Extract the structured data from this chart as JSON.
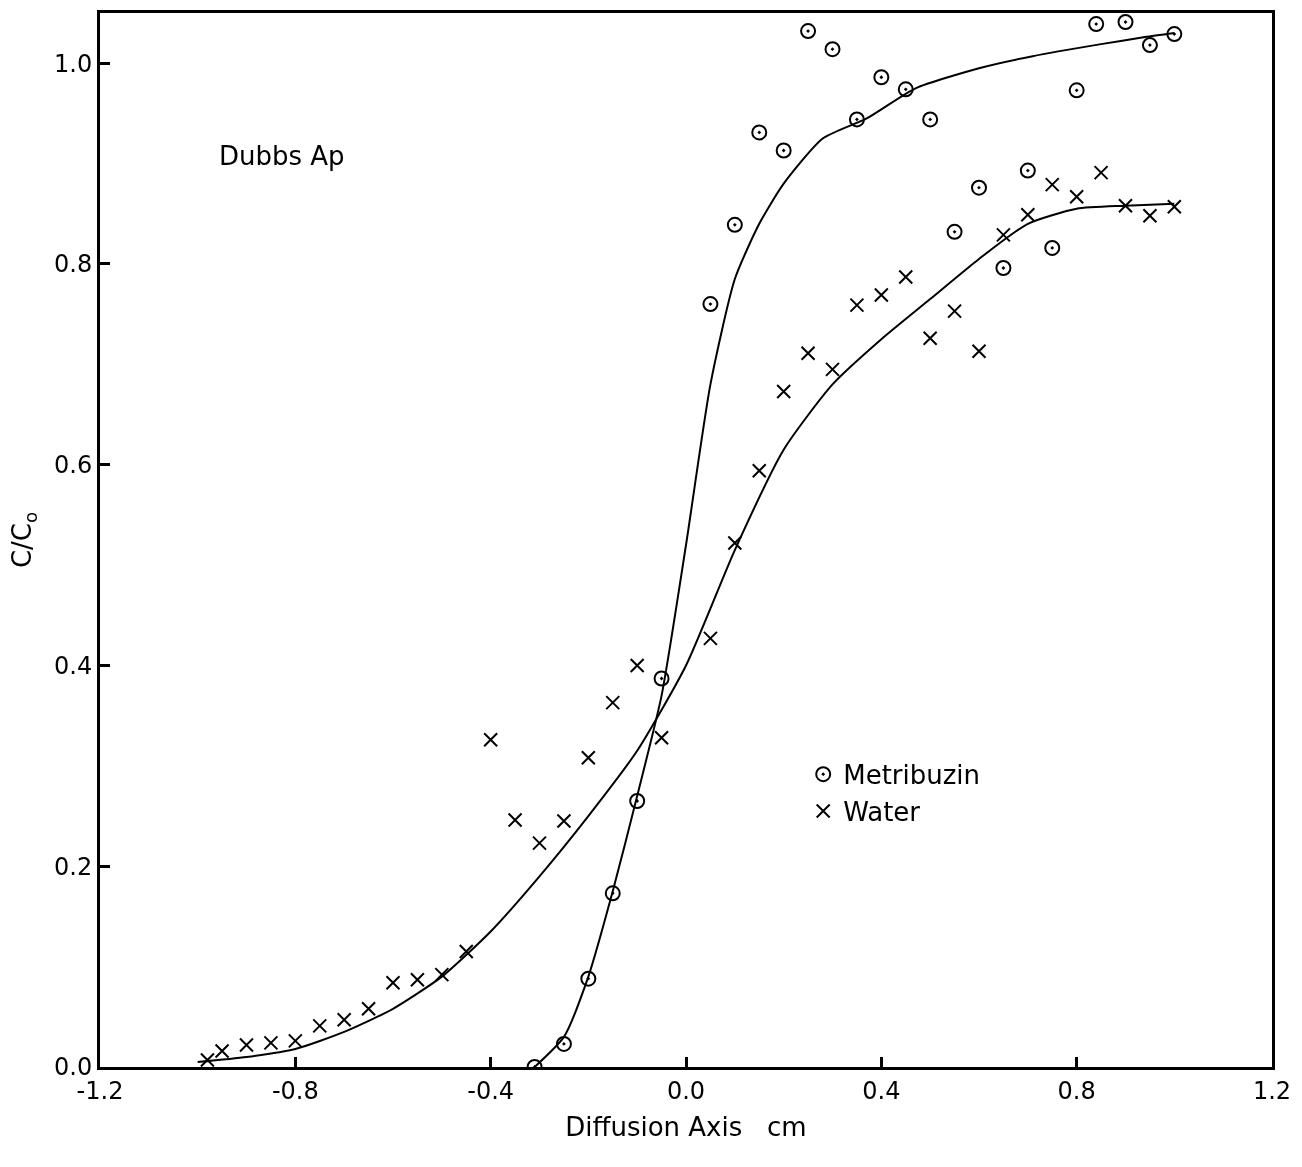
{
  "chart_data": {
    "type": "scatter",
    "xlabel": "Diffusion Axis   cm",
    "ylabel": "C/C$_{o}$",
    "annotations": [
      "Dubbs Ap"
    ],
    "xlim": [
      -1.2,
      1.2
    ],
    "ylim": [
      0,
      1.05
    ],
    "xticks": [
      -1.2,
      -0.8,
      -0.4,
      {
        "value": 0,
        "label": "0.0"
      },
      0.4,
      0.8,
      1.2
    ],
    "yticks": [
      {
        "value": 0,
        "label": "0.0"
      },
      0.2,
      0.4,
      0.6,
      0.8,
      {
        "value": 1,
        "label": "1.0"
      }
    ],
    "legend": "bottom right",
    "series": [
      {
        "name": "Metribuzin",
        "marker": "circle",
        "color": "#000000",
        "x": [
          -0.31,
          -0.25,
          -0.2,
          -0.15,
          -0.1,
          -0.05,
          0.05,
          0.1,
          0.15,
          0.2,
          0.25,
          0.3,
          0.35,
          0.4,
          0.45,
          0.5,
          0.55,
          0.6,
          0.65,
          0.7,
          0.75,
          0.8,
          0.84,
          0.9,
          0.95,
          1.0
        ],
        "values": [
          0.0,
          0.023,
          0.088,
          0.173,
          0.265,
          0.387,
          0.76,
          0.839,
          0.931,
          0.913,
          1.032,
          1.014,
          0.944,
          0.986,
          0.974,
          0.944,
          0.832,
          0.876,
          0.796,
          0.893,
          0.816,
          0.973,
          1.039,
          1.041,
          1.018,
          1.029
        ]
      },
      {
        "name": "Water",
        "marker": "cross",
        "color": "#000000",
        "x": [
          -0.98,
          -0.95,
          -0.9,
          -0.85,
          -0.8,
          -0.75,
          -0.7,
          -0.65,
          -0.6,
          -0.55,
          -0.5,
          -0.45,
          -0.4,
          -0.35,
          -0.3,
          -0.25,
          -0.2,
          -0.15,
          -0.1,
          -0.05,
          0.05,
          0.1,
          0.15,
          0.2,
          0.25,
          0.3,
          0.35,
          0.4,
          0.45,
          0.5,
          0.55,
          0.6,
          0.65,
          0.7,
          0.75,
          0.8,
          0.85,
          0.9,
          0.95,
          1.0
        ],
        "values": [
          0.007,
          0.016,
          0.022,
          0.024,
          0.026,
          0.041,
          0.047,
          0.058,
          0.084,
          0.087,
          0.092,
          0.115,
          0.326,
          0.246,
          0.223,
          0.245,
          0.308,
          0.363,
          0.4,
          0.328,
          0.427,
          0.522,
          0.594,
          0.673,
          0.711,
          0.695,
          0.759,
          0.769,
          0.787,
          0.726,
          0.753,
          0.713,
          0.829,
          0.849,
          0.879,
          0.867,
          0.891,
          0.858,
          0.848,
          0.857
        ]
      },
      {
        "type": "line",
        "marker": "none",
        "line_style": "solid",
        "color": "#000000",
        "x": [
          -0.31,
          -0.25,
          -0.2,
          -0.15,
          -0.1,
          -0.05,
          0.0,
          0.05,
          0.1,
          0.15,
          0.2,
          0.28,
          0.37,
          0.47,
          0.6,
          0.71,
          0.85,
          0.94,
          1.0
        ],
        "values": [
          0.0,
          0.03,
          0.09,
          0.175,
          0.27,
          0.37,
          0.52,
          0.68,
          0.785,
          0.84,
          0.88,
          0.925,
          0.945,
          0.975,
          0.995,
          1.007,
          1.019,
          1.026,
          1.03
        ]
      },
      {
        "type": "line",
        "marker": "none",
        "line_style": "solid",
        "color": "#000000",
        "x": [
          -1.0,
          -0.9,
          -0.8,
          -0.7,
          -0.6,
          -0.5,
          -0.4,
          -0.3,
          -0.2,
          -0.1,
          0.0,
          0.1,
          0.2,
          0.3,
          0.4,
          0.5,
          0.6,
          0.7,
          0.8,
          0.9,
          1.0
        ],
        "values": [
          0.005,
          0.01,
          0.018,
          0.035,
          0.058,
          0.09,
          0.135,
          0.19,
          0.25,
          0.315,
          0.4,
          0.515,
          0.615,
          0.68,
          0.725,
          0.765,
          0.805,
          0.84,
          0.855,
          0.858,
          0.86
        ]
      }
    ]
  }
}
